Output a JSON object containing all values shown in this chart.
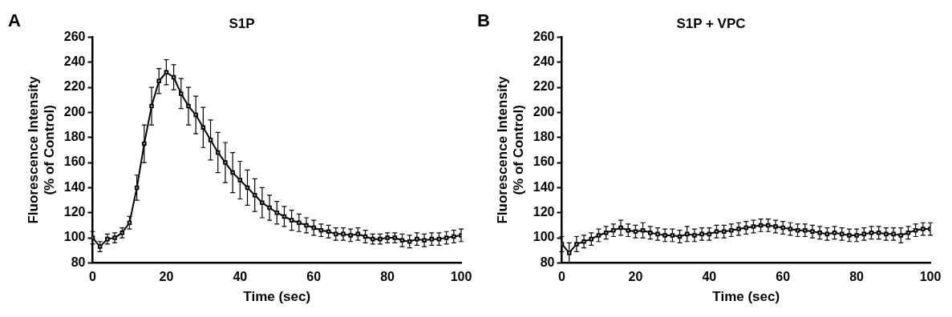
{
  "chart_data": [
    {
      "type": "line",
      "title": "S1P",
      "annotations": [
        "A"
      ],
      "xlabel": "Time (sec)",
      "ylabel": "Fluorescence Intensity\n(% of Control)",
      "xlim": [
        0,
        100
      ],
      "xticks": [
        0,
        20,
        40,
        60,
        80,
        100
      ],
      "ylim": [
        80,
        260
      ],
      "yticks": [
        80,
        100,
        120,
        140,
        160,
        180,
        200,
        220,
        240,
        260
      ],
      "grid": false,
      "legend": false,
      "marker": "square",
      "line_style": "solid",
      "x": [
        0,
        2,
        4,
        6,
        8,
        10,
        12,
        14,
        16,
        18,
        20,
        22,
        24,
        26,
        28,
        30,
        32,
        34,
        36,
        38,
        40,
        42,
        44,
        46,
        48,
        50,
        52,
        54,
        56,
        58,
        60,
        62,
        64,
        66,
        68,
        70,
        72,
        74,
        76,
        78,
        80,
        82,
        84,
        86,
        88,
        90,
        92,
        94,
        96,
        98,
        100
      ],
      "series": [
        {
          "color": "#000000",
          "values": [
            100,
            93,
            99,
            100,
            104,
            112,
            140,
            175,
            205,
            225,
            232,
            228,
            215,
            205,
            198,
            188,
            178,
            168,
            160,
            152,
            146,
            140,
            134,
            128,
            124,
            120,
            117,
            114,
            112,
            110,
            108,
            106,
            105,
            103,
            103,
            102,
            103,
            101,
            99,
            99,
            100,
            100,
            98,
            97,
            99,
            98,
            99,
            99,
            100,
            101,
            102
          ],
          "errors": [
            5,
            4,
            4,
            4,
            4,
            5,
            10,
            15,
            15,
            10,
            10,
            10,
            12,
            15,
            15,
            16,
            16,
            16,
            16,
            16,
            15,
            14,
            13,
            12,
            10,
            9,
            8,
            8,
            7,
            6,
            6,
            5,
            5,
            5,
            5,
            5,
            5,
            5,
            4,
            4,
            4,
            4,
            5,
            5,
            5,
            5,
            5,
            5,
            5,
            5,
            5
          ]
        }
      ]
    },
    {
      "type": "line",
      "title": "S1P + VPC",
      "annotations": [
        "B"
      ],
      "xlabel": "Time (sec)",
      "ylabel": "Fluorescence Intensity\n(% of Control)",
      "xlim": [
        0,
        100
      ],
      "xticks": [
        0,
        20,
        40,
        60,
        80,
        100
      ],
      "ylim": [
        80,
        260
      ],
      "yticks": [
        80,
        100,
        120,
        140,
        160,
        180,
        200,
        220,
        240,
        260
      ],
      "grid": false,
      "legend": false,
      "marker": "square",
      "line_style": "solid",
      "x": [
        0,
        2,
        4,
        6,
        8,
        10,
        12,
        14,
        16,
        18,
        20,
        22,
        24,
        26,
        28,
        30,
        32,
        34,
        36,
        38,
        40,
        42,
        44,
        46,
        48,
        50,
        52,
        54,
        56,
        58,
        60,
        62,
        64,
        66,
        68,
        70,
        72,
        74,
        76,
        78,
        80,
        82,
        84,
        86,
        88,
        90,
        92,
        94,
        96,
        98,
        100
      ],
      "series": [
        {
          "color": "#000000",
          "values": [
            95,
            88,
            95,
            97,
            99,
            102,
            104,
            106,
            108,
            106,
            105,
            106,
            104,
            103,
            102,
            102,
            101,
            103,
            102,
            103,
            103,
            105,
            105,
            106,
            107,
            108,
            109,
            110,
            110,
            109,
            108,
            107,
            106,
            106,
            105,
            104,
            103,
            104,
            103,
            102,
            102,
            103,
            104,
            104,
            103,
            103,
            102,
            104,
            106,
            107,
            107
          ],
          "errors": [
            6,
            8,
            6,
            5,
            5,
            5,
            5,
            5,
            6,
            5,
            5,
            6,
            5,
            5,
            5,
            5,
            5,
            6,
            5,
            5,
            5,
            5,
            5,
            5,
            5,
            5,
            5,
            5,
            5,
            5,
            5,
            5,
            5,
            5,
            5,
            5,
            5,
            5,
            5,
            5,
            5,
            5,
            5,
            5,
            5,
            5,
            6,
            5,
            5,
            5,
            5
          ]
        }
      ]
    }
  ]
}
